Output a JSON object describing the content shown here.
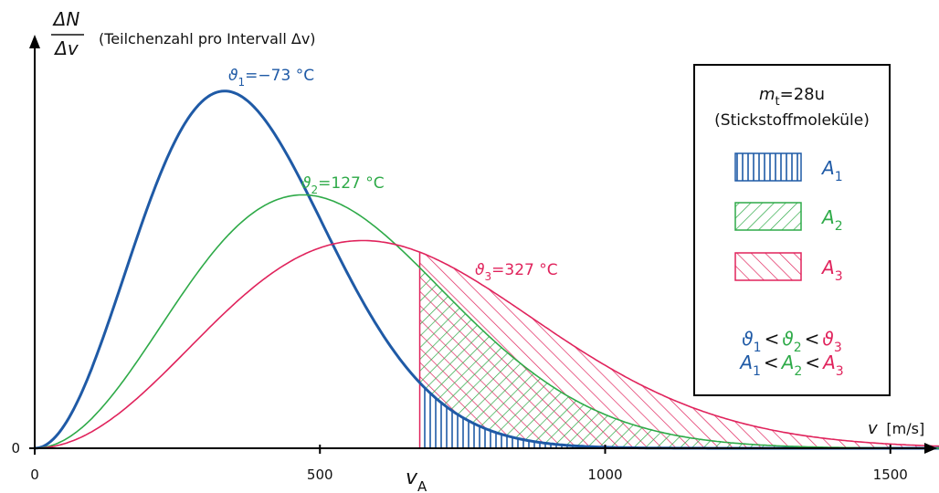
{
  "chart_data": {
    "type": "line",
    "title": "",
    "ylabel": {
      "numerator": "ΔN",
      "denominator": "Δv",
      "description": "(Teilchenzahl pro Intervall Δv)"
    },
    "xlabel": {
      "var": "v",
      "unit": "[m/s]"
    },
    "xlim": [
      0,
      1650
    ],
    "ylim": [
      0,
      1
    ],
    "x_ticks": [
      "0",
      "500",
      "1000",
      "1500"
    ],
    "y_ticks": [
      "0"
    ],
    "v_a_label": {
      "main": "v",
      "sub": "A"
    },
    "v_a": 675,
    "grid": false,
    "series": [
      {
        "id": "t1",
        "name": "ϑ1 = −73 °C",
        "sym": "ϑ",
        "sub": "1",
        "rest": "=−73 °C",
        "temp_c": -73,
        "peak_v": 333,
        "peak_level": 0.86,
        "color": "#1f5aa6"
      },
      {
        "id": "t2",
        "name": "ϑ2 = 127 °C",
        "sym": "ϑ",
        "sub": "2",
        "rest": "=127 °C",
        "temp_c": 127,
        "peak_v": 470,
        "peak_level": 0.61,
        "color": "#2eaa48"
      },
      {
        "id": "t3",
        "name": "ϑ3 = 327 °C",
        "sym": "ϑ",
        "sub": "3",
        "rest": "=327 °C",
        "temp_c": 327,
        "peak_v": 575,
        "peak_level": 0.5,
        "color": "#e0235c"
      }
    ],
    "legend": {
      "placement": "right",
      "mass": {
        "sym": "m",
        "sub": "t",
        "rest": "=28u"
      },
      "molecule": "(Stickstoffmoleküle)",
      "areas": [
        {
          "label": "A",
          "sub": "1",
          "color": "#1f5aa6",
          "hatch": "vertical"
        },
        {
          "label": "A",
          "sub": "2",
          "color": "#2eaa48",
          "hatch": "diagonal-up"
        },
        {
          "label": "A",
          "sub": "3",
          "color": "#e0235c",
          "hatch": "diagonal-down"
        }
      ],
      "ineq1": {
        "sym": "ϑ",
        "subs": [
          "1",
          "2",
          "3"
        ],
        "op": "<"
      },
      "ineq2": {
        "sym": "A",
        "subs": [
          "1",
          "2",
          "3"
        ],
        "op": "<"
      }
    }
  }
}
